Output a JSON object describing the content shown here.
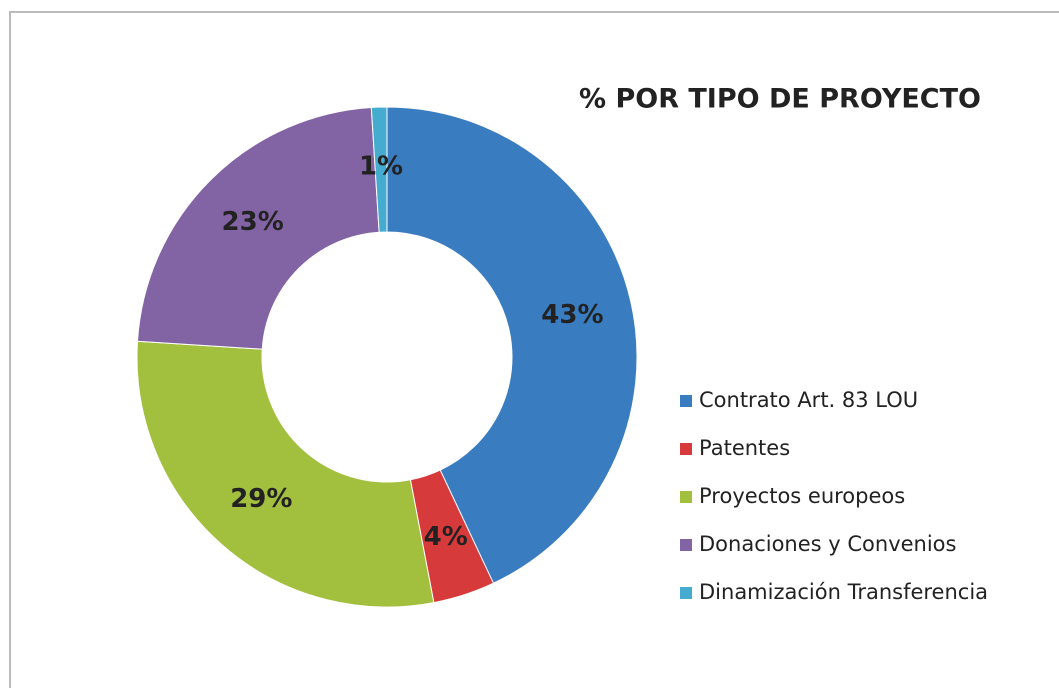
{
  "chart_data": {
    "type": "donut",
    "title": "% POR TIPO DE PROYECTO",
    "categories": [
      "Contrato Art. 83 LOU",
      "Patentes",
      "Proyectos europeos",
      "Donaciones y Convenios",
      "Dinamización Transferencia"
    ],
    "values": [
      43,
      4,
      29,
      23,
      1
    ],
    "value_labels": [
      "43%",
      "4%",
      "29%",
      "23%",
      "1%"
    ],
    "colors": [
      "#3a7cc0",
      "#d63a3a",
      "#a3bf3e",
      "#8263a4",
      "#45acd0"
    ],
    "legend": "right"
  }
}
